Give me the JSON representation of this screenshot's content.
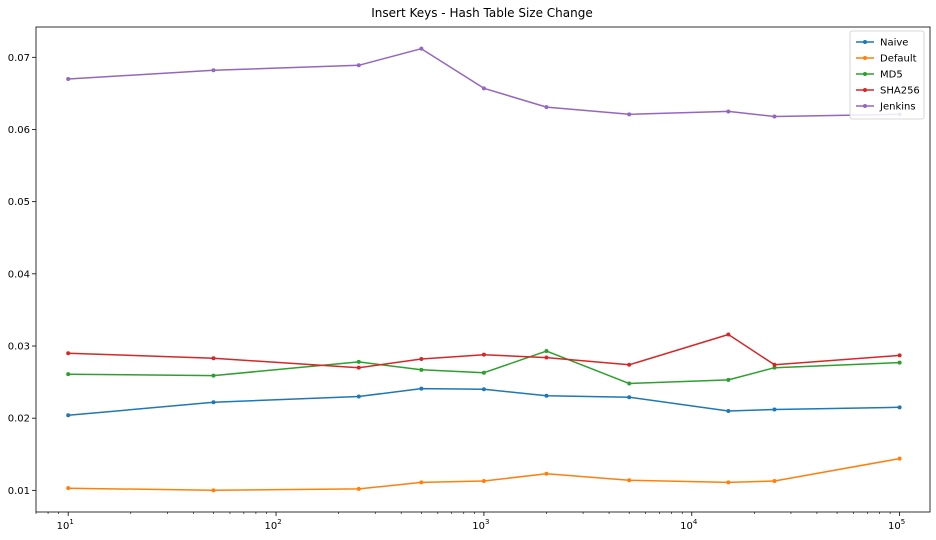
{
  "chart_data": {
    "type": "line",
    "title": "Insert Keys - Hash Table Size Change",
    "xlabel": "",
    "ylabel": "",
    "xscale": "log",
    "xlim": [
      7,
      140000
    ],
    "ylim": [
      0.007,
      0.0742
    ],
    "x": [
      10,
      50,
      250,
      500,
      1000,
      2000,
      5000,
      15000,
      25000,
      100000
    ],
    "xticks": [
      10,
      100,
      1000,
      10000,
      100000
    ],
    "xtick_labels": [
      {
        "base": "10",
        "exp": "1"
      },
      {
        "base": "10",
        "exp": "2"
      },
      {
        "base": "10",
        "exp": "3"
      },
      {
        "base": "10",
        "exp": "4"
      },
      {
        "base": "10",
        "exp": "5"
      }
    ],
    "yticks": [
      0.01,
      0.02,
      0.03,
      0.04,
      0.05,
      0.06,
      0.07
    ],
    "ytick_labels": [
      "0.01",
      "0.02",
      "0.03",
      "0.04",
      "0.05",
      "0.06",
      "0.07"
    ],
    "grid": false,
    "legend_position": "top-right",
    "series": [
      {
        "name": "Naive",
        "color": "#1f77b4",
        "values": [
          0.0204,
          0.0222,
          0.023,
          0.0241,
          0.024,
          0.0231,
          0.0229,
          0.021,
          0.0212,
          0.0215
        ]
      },
      {
        "name": "Default",
        "color": "#ff7f0e",
        "values": [
          0.0103,
          0.01,
          0.0102,
          0.0111,
          0.0113,
          0.0123,
          0.0114,
          0.0111,
          0.0113,
          0.0144
        ]
      },
      {
        "name": "MD5",
        "color": "#2ca02c",
        "values": [
          0.0261,
          0.0259,
          0.0278,
          0.0267,
          0.0263,
          0.0293,
          0.0248,
          0.0253,
          0.027,
          0.0277
        ]
      },
      {
        "name": "SHA256",
        "color": "#d62728",
        "values": [
          0.029,
          0.0283,
          0.027,
          0.0282,
          0.0288,
          0.0284,
          0.0274,
          0.0316,
          0.0274,
          0.0287
        ]
      },
      {
        "name": "Jenkins",
        "color": "#9467bd",
        "values": [
          0.067,
          0.0682,
          0.0689,
          0.0712,
          0.0657,
          0.0631,
          0.0621,
          0.0625,
          0.0618,
          0.0621
        ]
      }
    ]
  }
}
